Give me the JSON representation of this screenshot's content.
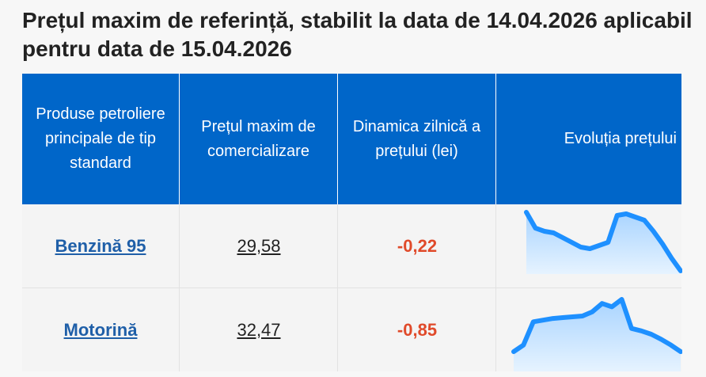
{
  "page": {
    "title": "Prețul maxim de referință, stabilit la data de 14.04.2026 aplicabil pentru data de 15.04.2026"
  },
  "table": {
    "headers": {
      "product": "Produse petroliere principale de tip standard",
      "price": "Prețul maxim de comercializare",
      "dynamics": "Dinamica zilnică a prețului (lei)",
      "evolution": "Evoluția prețului"
    },
    "rows": [
      {
        "product": "Benzină 95",
        "price": "29,58",
        "dynamics": "-0,22",
        "trend": [
          29.95,
          29.85,
          29.83,
          29.82,
          29.79,
          29.76,
          29.73,
          29.72,
          29.74,
          29.76,
          29.93,
          29.94,
          29.92,
          29.9,
          29.83,
          29.75,
          29.66,
          29.58
        ]
      },
      {
        "product": "Motorină",
        "price": "32,47",
        "dynamics": "-0,85",
        "trend": [
          32.47,
          32.55,
          32.83,
          32.85,
          32.87,
          32.88,
          32.89,
          32.9,
          32.95,
          33.05,
          33.01,
          33.1,
          32.75,
          32.72,
          32.68,
          32.62,
          32.55,
          32.47
        ]
      }
    ]
  },
  "colors": {
    "header_bg": "#0066c9",
    "link": "#1f5fa8",
    "negative": "#e04a2a",
    "spark_line": "#1e90ff",
    "spark_fill_top": "#a9d4ff",
    "spark_fill_bottom": "#e6f3ff"
  }
}
